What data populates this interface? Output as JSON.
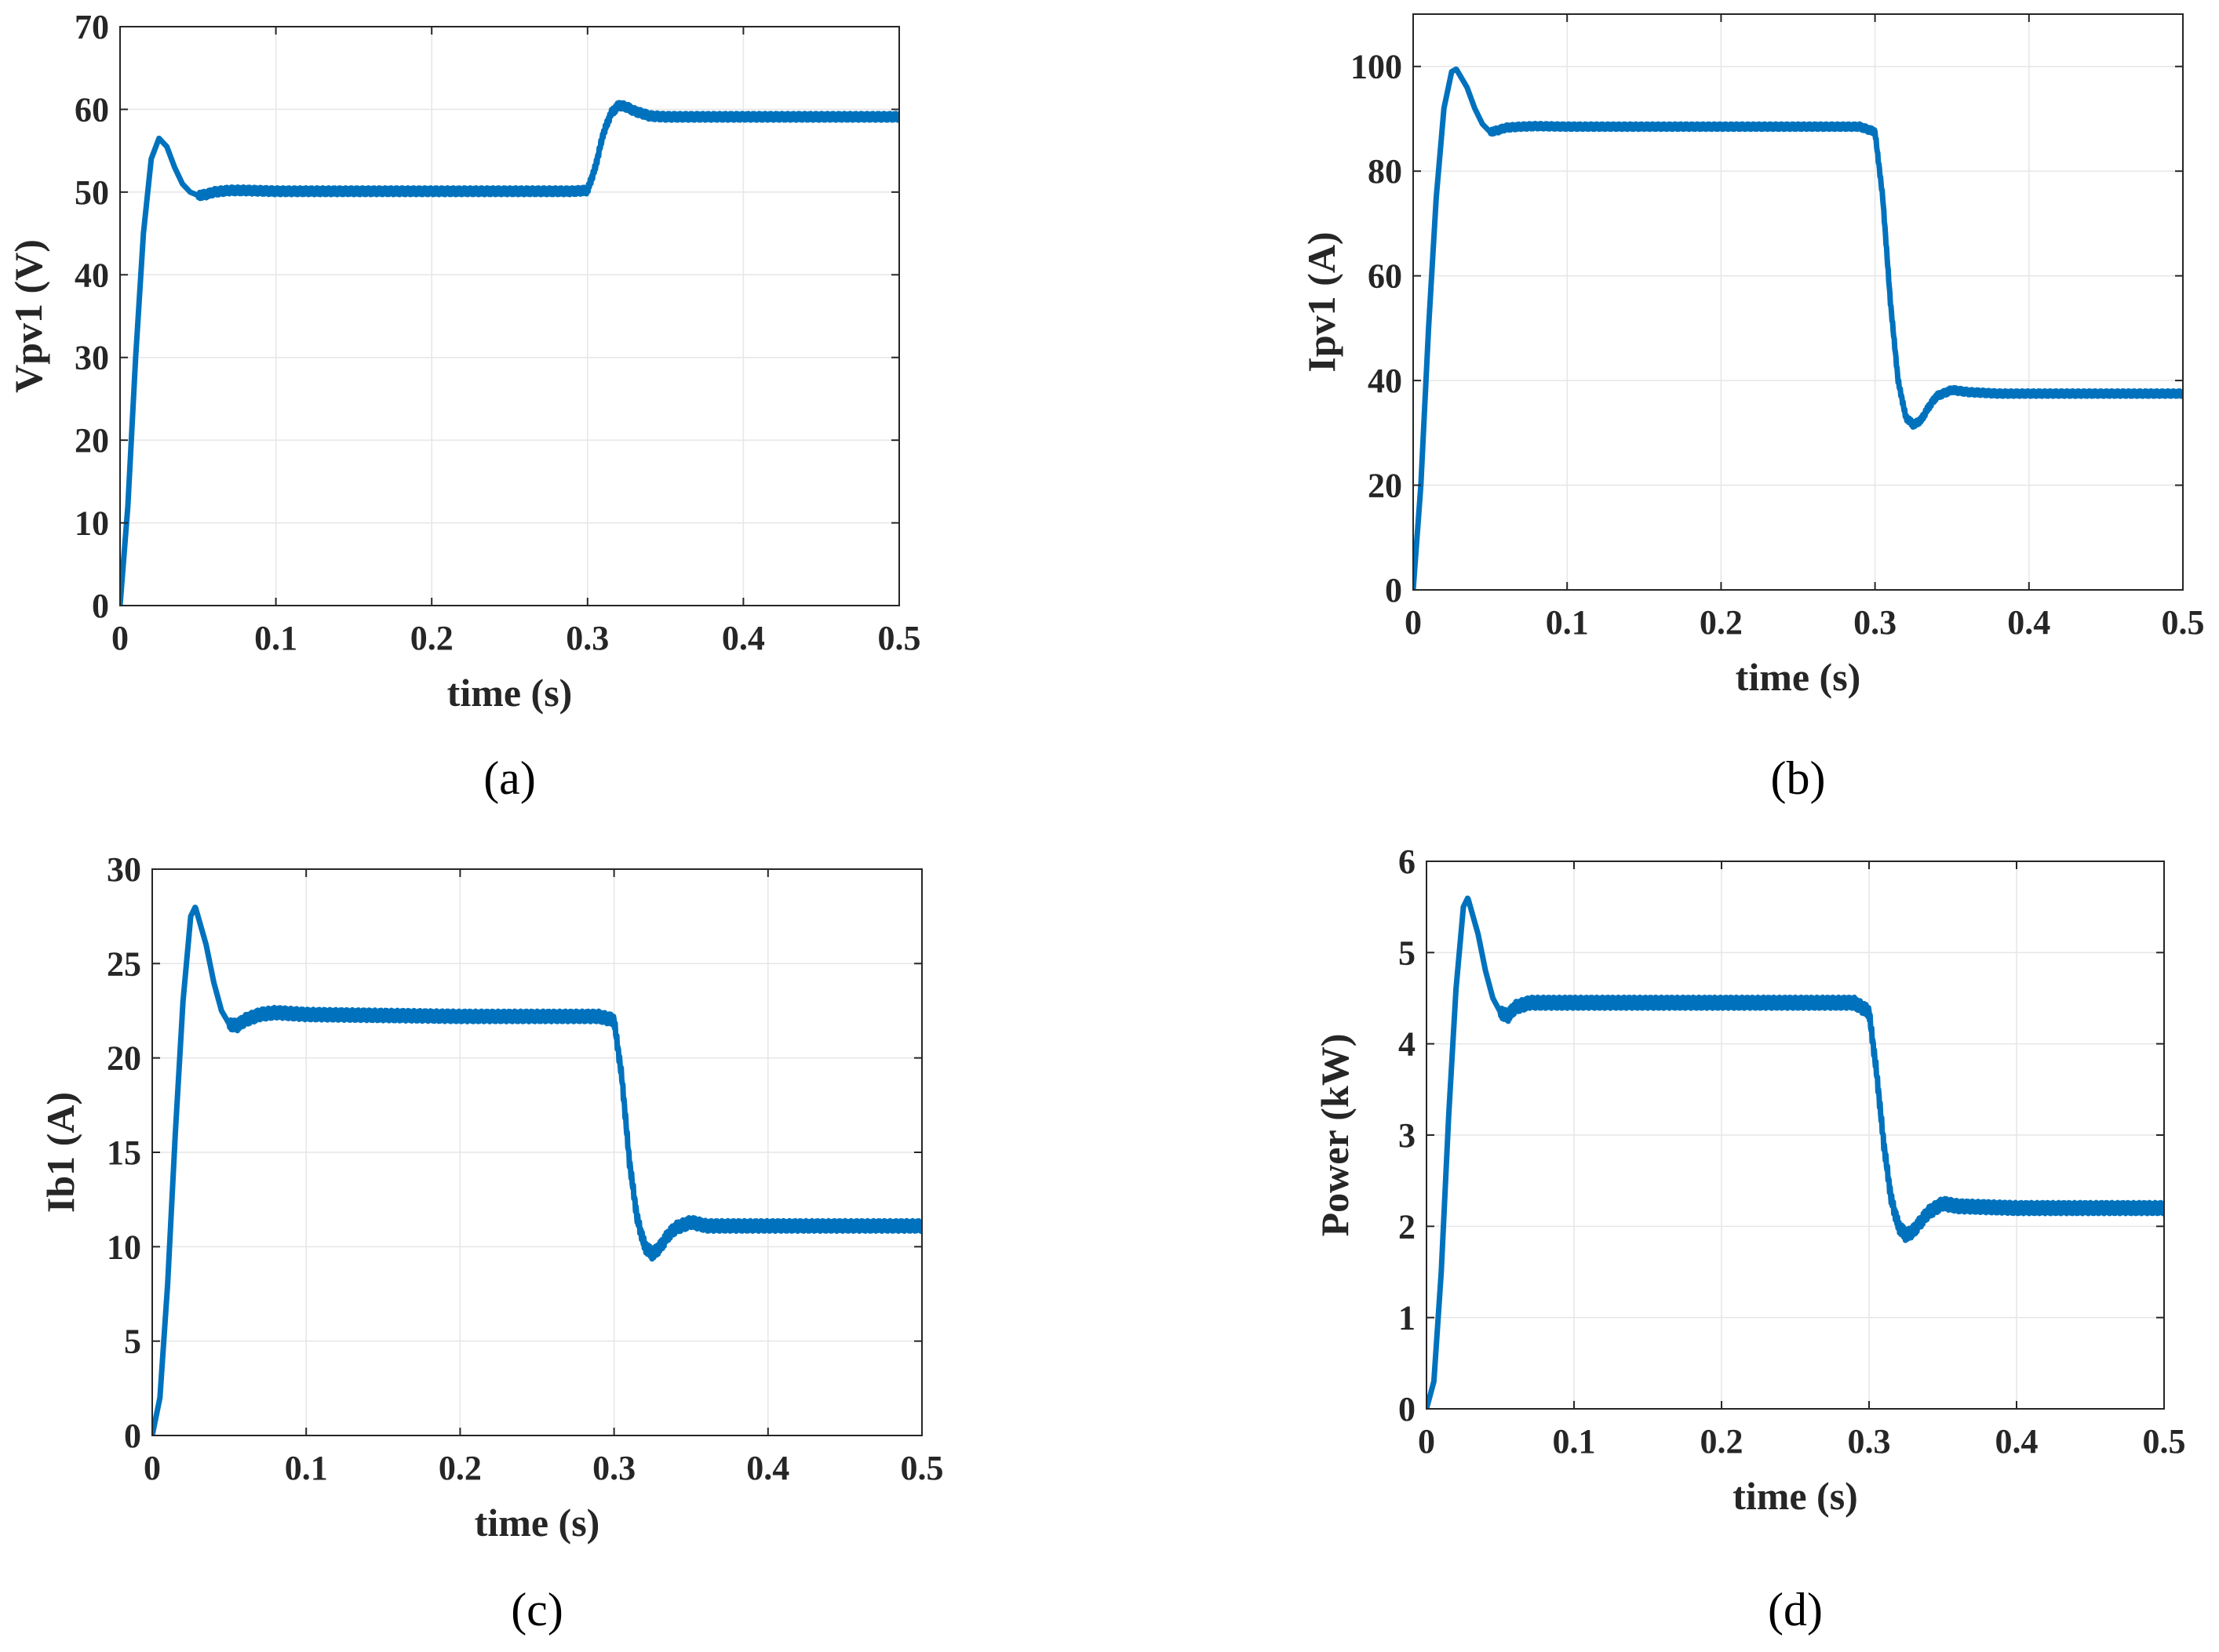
{
  "colors": {
    "series": "#0072BD",
    "grid": "#e6e6e6",
    "axis": "#262626",
    "background": "#ffffff"
  },
  "chart_data": [
    {
      "id": "a",
      "type": "line",
      "caption": "(a)",
      "xlabel": "time (s)",
      "ylabel": "Vpv1 (V)",
      "xlim": [
        0,
        0.5
      ],
      "ylim": [
        0,
        70
      ],
      "xticks": [
        0,
        0.1,
        0.2,
        0.3,
        0.4,
        0.5
      ],
      "xtick_labels": [
        "0",
        "0.1",
        "0.2",
        "0.3",
        "0.4",
        "0.5"
      ],
      "yticks": [
        0,
        10,
        20,
        30,
        40,
        50,
        60,
        70
      ],
      "ytick_labels": [
        "0",
        "10",
        "20",
        "30",
        "40",
        "50",
        "60",
        "70"
      ],
      "grid": true,
      "series": [
        {
          "name": "Vpv1",
          "ripple": 0.8,
          "x": [
            0,
            0.005,
            0.01,
            0.015,
            0.02,
            0.025,
            0.03,
            0.035,
            0.04,
            0.045,
            0.05,
            0.055,
            0.06,
            0.07,
            0.08,
            0.1,
            0.2,
            0.29,
            0.3,
            0.305,
            0.31,
            0.315,
            0.32,
            0.325,
            0.33,
            0.34,
            0.35,
            0.4,
            0.5
          ],
          "y": [
            0,
            12,
            30,
            45,
            54,
            56.5,
            55.5,
            53,
            51,
            50,
            49.6,
            49.7,
            50,
            50.2,
            50.2,
            50.1,
            50.1,
            50.1,
            50.2,
            53,
            57,
            59.5,
            60.5,
            60.3,
            59.8,
            59.2,
            59.1,
            59.1,
            59.1
          ]
        }
      ]
    },
    {
      "id": "b",
      "type": "line",
      "caption": "(b)",
      "xlabel": "time (s)",
      "ylabel": "Ipv1 (A)",
      "xlim": [
        0,
        0.5
      ],
      "ylim": [
        0,
        110
      ],
      "xticks": [
        0,
        0.1,
        0.2,
        0.3,
        0.4,
        0.5
      ],
      "xtick_labels": [
        "0",
        "0.1",
        "0.2",
        "0.3",
        "0.4",
        "0.5"
      ],
      "yticks": [
        0,
        20,
        40,
        60,
        80,
        100
      ],
      "ytick_labels": [
        "0",
        "20",
        "40",
        "60",
        "80",
        "100"
      ],
      "grid": true,
      "series": [
        {
          "name": "Ipv1",
          "ripple": 1.0,
          "x": [
            0,
            0.005,
            0.01,
            0.015,
            0.02,
            0.025,
            0.028,
            0.035,
            0.04,
            0.045,
            0.05,
            0.055,
            0.06,
            0.07,
            0.08,
            0.1,
            0.2,
            0.29,
            0.3,
            0.305,
            0.31,
            0.315,
            0.32,
            0.325,
            0.33,
            0.335,
            0.34,
            0.35,
            0.36,
            0.38,
            0.4,
            0.5
          ],
          "y": [
            0,
            20,
            50,
            75,
            92,
            99,
            99.5,
            96,
            92,
            89,
            87.5,
            87.8,
            88.3,
            88.5,
            88.6,
            88.5,
            88.5,
            88.5,
            87.5,
            75,
            55,
            40,
            33,
            31.5,
            32.5,
            35,
            37,
            38.2,
            37.8,
            37.5,
            37.5,
            37.5
          ]
        }
      ]
    },
    {
      "id": "c",
      "type": "line",
      "caption": "(c)",
      "xlabel": "time (s)",
      "ylabel": "Ib1 (A)",
      "xlim": [
        0,
        0.5
      ],
      "ylim": [
        0,
        30
      ],
      "xticks": [
        0,
        0.1,
        0.2,
        0.3,
        0.4,
        0.5
      ],
      "xtick_labels": [
        "0",
        "0.1",
        "0.2",
        "0.3",
        "0.4",
        "0.5"
      ],
      "yticks": [
        0,
        5,
        10,
        15,
        20,
        25,
        30
      ],
      "ytick_labels": [
        "0",
        "5",
        "10",
        "15",
        "20",
        "25",
        "30"
      ],
      "grid": true,
      "series": [
        {
          "name": "Ib1",
          "ripple": 0.55,
          "x": [
            0,
            0.005,
            0.01,
            0.015,
            0.02,
            0.025,
            0.028,
            0.035,
            0.04,
            0.045,
            0.05,
            0.055,
            0.06,
            0.07,
            0.08,
            0.1,
            0.2,
            0.29,
            0.3,
            0.305,
            0.31,
            0.315,
            0.32,
            0.325,
            0.33,
            0.335,
            0.34,
            0.35,
            0.36,
            0.4,
            0.5
          ],
          "y": [
            0,
            2,
            8,
            16,
            23,
            27.5,
            28,
            26,
            24,
            22.5,
            21.8,
            21.7,
            22,
            22.3,
            22.4,
            22.3,
            22.2,
            22.2,
            22,
            19,
            14.5,
            11.5,
            10,
            9.6,
            10,
            10.6,
            11,
            11.3,
            11.1,
            11.1,
            11.1
          ]
        }
      ]
    },
    {
      "id": "d",
      "type": "line",
      "caption": "(d)",
      "xlabel": "time (s)",
      "ylabel": "Power (kW)",
      "xlim": [
        0,
        0.5
      ],
      "ylim": [
        0,
        6
      ],
      "xticks": [
        0,
        0.1,
        0.2,
        0.3,
        0.4,
        0.5
      ],
      "xtick_labels": [
        "0",
        "0.1",
        "0.2",
        "0.3",
        "0.4",
        "0.5"
      ],
      "yticks": [
        0,
        1,
        2,
        3,
        4,
        5,
        6
      ],
      "ytick_labels": [
        "0",
        "1",
        "2",
        "3",
        "4",
        "5",
        "6"
      ],
      "grid": true,
      "series": [
        {
          "name": "Power",
          "ripple": 0.12,
          "x": [
            0,
            0.005,
            0.01,
            0.015,
            0.02,
            0.025,
            0.028,
            0.035,
            0.04,
            0.045,
            0.05,
            0.055,
            0.06,
            0.07,
            0.08,
            0.1,
            0.2,
            0.29,
            0.3,
            0.305,
            0.31,
            0.315,
            0.32,
            0.325,
            0.33,
            0.335,
            0.34,
            0.35,
            0.36,
            0.4,
            0.5
          ],
          "y": [
            0,
            0.3,
            1.5,
            3.2,
            4.6,
            5.5,
            5.6,
            5.2,
            4.8,
            4.5,
            4.35,
            4.3,
            4.4,
            4.45,
            4.45,
            4.45,
            4.45,
            4.45,
            4.35,
            3.7,
            2.9,
            2.3,
            2.0,
            1.9,
            1.95,
            2.05,
            2.15,
            2.25,
            2.22,
            2.2,
            2.2
          ]
        }
      ]
    }
  ]
}
